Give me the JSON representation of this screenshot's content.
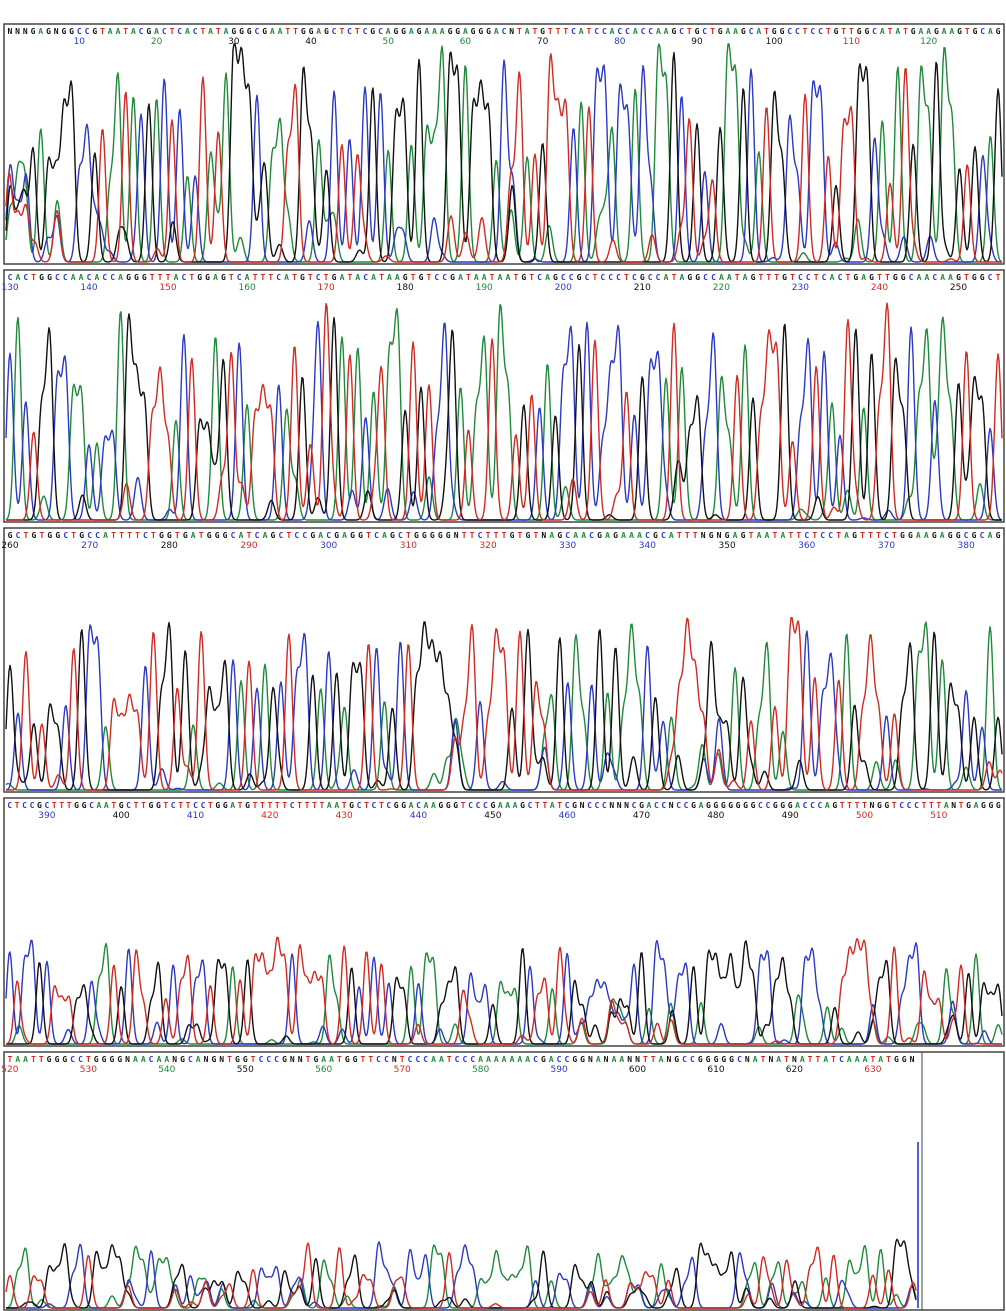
{
  "header": {
    "text": ""
  },
  "colors": {
    "A": "#1f8a3a",
    "C": "#2b39c4",
    "G": "#111111",
    "T": "#d02a22"
  },
  "chart_data": {
    "type": "line",
    "title": "",
    "xlabel": "",
    "ylabel": "",
    "grid": false,
    "rows": [
      {
        "sequence": "NNNGAGNGGCCGTAATACGACTCACTATAGGGCGAATTGGAGCTCTCGCAGGAGAAAGGAGGGACNTATGTTTCATCCACCACCAAGCTGCTGAAGCATGGCCTCCTGTTGGCATATGAAGAAGTGCAG",
        "position_start": 1,
        "tick_positions": [
          10,
          20,
          30,
          40,
          50,
          60,
          70,
          80,
          90,
          100,
          110,
          120
        ],
        "peak_scale": 1.0
      },
      {
        "sequence": "CACTGGCCAACACCAGGGTTTACTGGAGTCATTTCATGTCTGATACATAAGTGTCCGATAATAATGTCAGCCGCTCCCTCGCCATAGGCCAATAGTTTGTCCTCACTGAGTTGGCAACAAGTGGCT",
        "position_start": 130,
        "tick_positions": [
          130,
          140,
          150,
          160,
          170,
          180,
          190,
          200,
          210,
          220,
          230,
          240,
          250
        ],
        "peak_scale": 0.95
      },
      {
        "sequence": "GCTGTGGCTGCCATTTTCTGGTGATGGGCATCAGCTCCGACGAGGTCAGCTGGGGGNTTCTTTGTGTNAGCAACGAGAAACGCATTTNGNGAGTAATATTCTCCTAGTTTCTGGAAGAGGCGCAG",
        "position_start": 260,
        "tick_positions": [
          260,
          270,
          280,
          290,
          300,
          310,
          320,
          330,
          340,
          350,
          360,
          370,
          380
        ],
        "peak_scale": 0.7
      },
      {
        "sequence": "CTCCGCTTTGGCAATGCTTGGTCTTCCTGGATGTTTTTCTTTTAATGCTCTCGGACAAGGGTCCCGAAAGCTTATCGNCCCNNNCGACCNCCGAGGGGGGGCCGGGACCCAGTTTTNGGTCCCTTTANTGAGGG",
        "position_start": 385,
        "tick_positions": [
          390,
          400,
          410,
          420,
          430,
          440,
          450,
          460,
          470,
          480,
          490,
          500,
          510
        ],
        "peak_scale": 0.45
      },
      {
        "sequence": "TAATTGGGCCTGGGGNAACAANGCANGNTGGTCCCGNNTGAATGGTTCCNTCCCAATCCCAAAAAAACGACCGGNANAANNTTANGCCGGGGGCNATNATNATTATCAAATATGGN",
        "position_start": 520,
        "tick_positions": [
          520,
          530,
          540,
          550,
          560,
          570,
          580,
          590,
          600,
          610,
          620,
          630
        ],
        "peak_scale": 0.28
      }
    ]
  }
}
